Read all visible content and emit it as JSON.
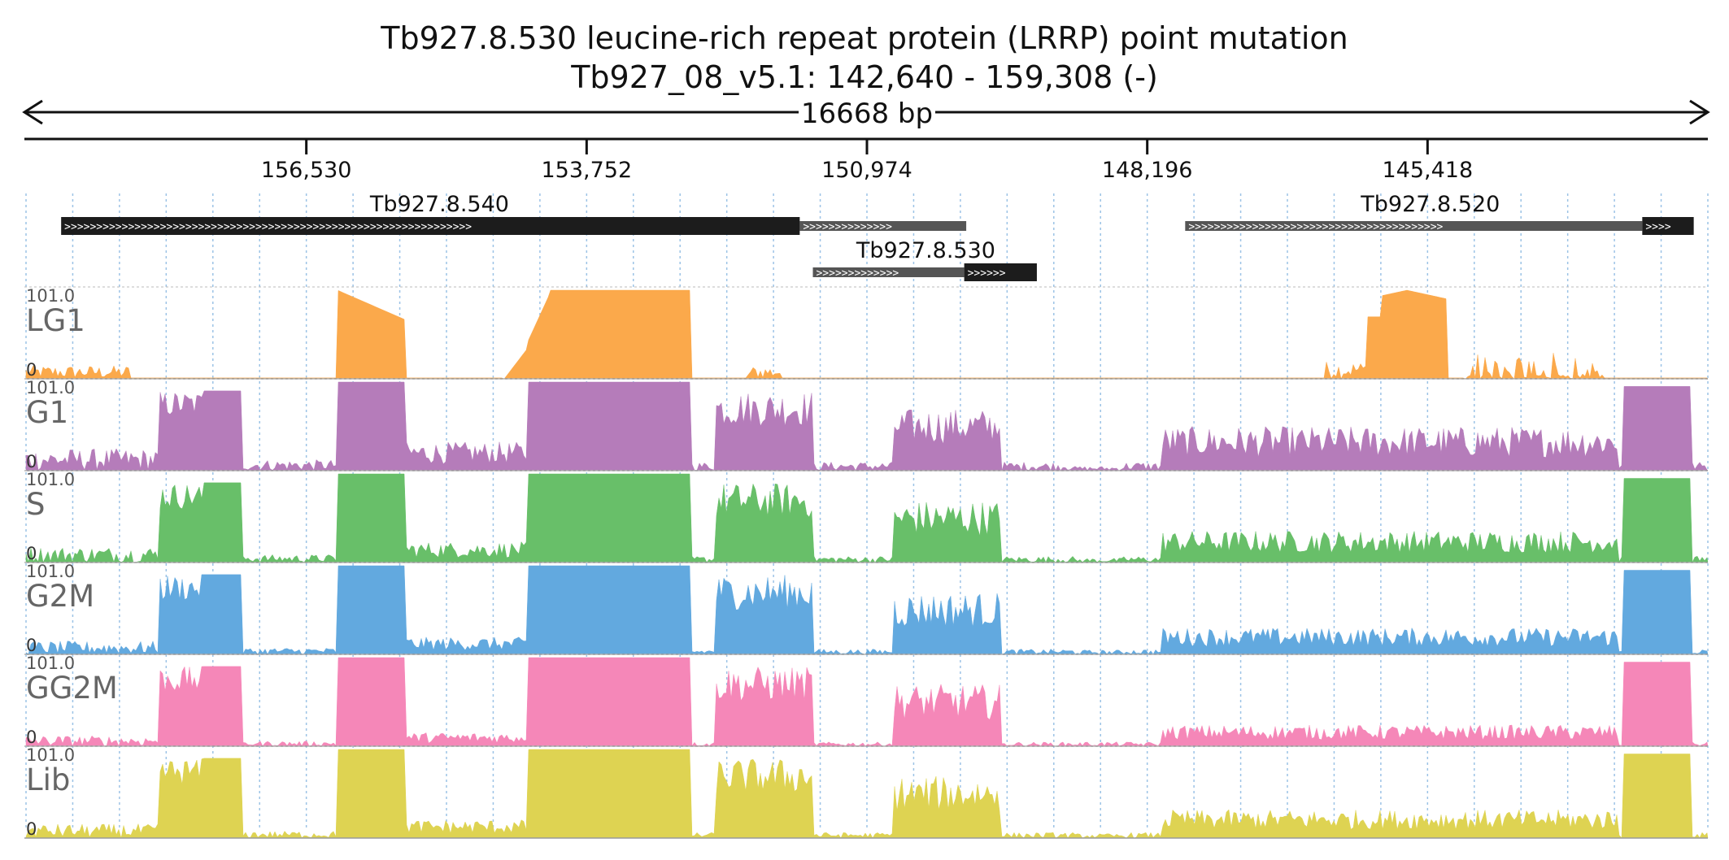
{
  "chart_data": {
    "type": "area",
    "title": "Tb927.8.530  leucine-rich repeat protein (LRRP)  point mutation",
    "subtitle": "Tb927_08_v5.1: 142,640 - 159,308 (-)",
    "span_label": "16668 bp",
    "region": {
      "start": 142640,
      "end": 159308,
      "strand": "-"
    },
    "ticks": [
      156530,
      153752,
      150974,
      148196,
      145418
    ],
    "tick_labels": [
      "156,530",
      "153,752",
      "150,974",
      "148,196",
      "145,418"
    ],
    "genes": [
      {
        "name": "Tb927.8.540",
        "start": 151960,
        "end": 158960,
        "cds_start": 151640,
        "cds_end": 158960,
        "utr_start": 149990,
        "utr_end": 151640,
        "row": 0
      },
      {
        "name": "Tb927.8.530",
        "start": 149290,
        "end": 151510,
        "cds_start": 149290,
        "cds_end": 150010,
        "utr_start": 150010,
        "utr_end": 151510,
        "row": 1
      },
      {
        "name": "Tb927.8.520",
        "start": 142780,
        "end": 147820,
        "cds_start": 142780,
        "cds_end": 143290,
        "utr_start": 143290,
        "utr_end": 147820,
        "row": 0
      }
    ],
    "tracks": [
      {
        "name": "LG1",
        "color": "#fba94b",
        "max_label": "101.0",
        "min_label": "0"
      },
      {
        "name": "G1",
        "color": "#b57cba",
        "max_label": "101.0",
        "min_label": "0"
      },
      {
        "name": "S",
        "color": "#68bf69",
        "max_label": "101.0",
        "min_label": "0"
      },
      {
        "name": "G2M",
        "color": "#62a9df",
        "max_label": "101.0",
        "min_label": "0"
      },
      {
        "name": "GG2M",
        "color": "#f587b8",
        "max_label": "101.0",
        "min_label": "0"
      },
      {
        "name": "Lib",
        "color": "#ded352",
        "max_label": "101.0",
        "min_label": "0"
      }
    ],
    "coverage_segments_note": "",
    "ylim": [
      0,
      101
    ]
  }
}
